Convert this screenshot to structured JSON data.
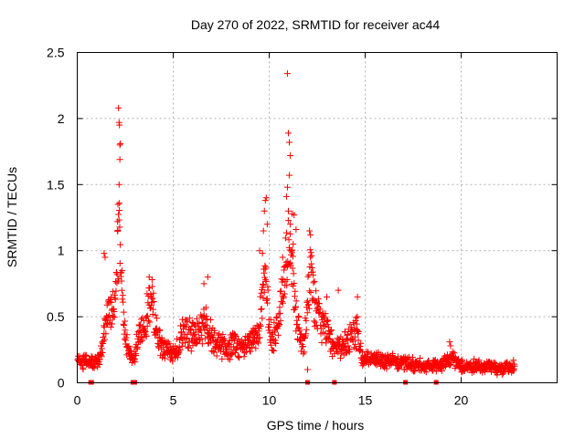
{
  "chart_data": {
    "type": "scatter",
    "title": "Day 270 of 2022, SRMTID for receiver ac44",
    "xlabel": "GPS time / hours",
    "ylabel": "SRMTID / TECUs",
    "xlim": [
      0,
      25
    ],
    "ylim": [
      0,
      2.5
    ],
    "xticks": [
      0,
      5,
      10,
      15,
      20
    ],
    "yticks": [
      0,
      0.5,
      1,
      1.5,
      2,
      2.5
    ],
    "grid": true,
    "marker": "+",
    "color": "#ff0000",
    "profile": [
      [
        0.0,
        0.17
      ],
      [
        0.5,
        0.16
      ],
      [
        0.9,
        0.15
      ],
      [
        1.2,
        0.2
      ],
      [
        1.4,
        0.35
      ],
      [
        1.6,
        0.55
      ],
      [
        1.8,
        0.5
      ],
      [
        2.0,
        0.6
      ],
      [
        2.1,
        0.95
      ],
      [
        2.2,
        1.1
      ],
      [
        2.3,
        0.8
      ],
      [
        2.5,
        0.35
      ],
      [
        2.9,
        0.15
      ],
      [
        3.2,
        0.35
      ],
      [
        3.5,
        0.45
      ],
      [
        3.8,
        0.65
      ],
      [
        4.0,
        0.5
      ],
      [
        4.3,
        0.3
      ],
      [
        4.6,
        0.25
      ],
      [
        5.0,
        0.22
      ],
      [
        5.3,
        0.3
      ],
      [
        5.6,
        0.4
      ],
      [
        6.0,
        0.35
      ],
      [
        6.3,
        0.4
      ],
      [
        6.7,
        0.45
      ],
      [
        7.0,
        0.35
      ],
      [
        7.4,
        0.3
      ],
      [
        7.8,
        0.25
      ],
      [
        8.2,
        0.3
      ],
      [
        8.6,
        0.25
      ],
      [
        9.0,
        0.3
      ],
      [
        9.3,
        0.35
      ],
      [
        9.6,
        0.55
      ],
      [
        9.8,
        0.8
      ],
      [
        10.0,
        0.45
      ],
      [
        10.2,
        0.3
      ],
      [
        10.5,
        0.5
      ],
      [
        10.8,
        0.8
      ],
      [
        11.0,
        1.1
      ],
      [
        11.2,
        0.8
      ],
      [
        11.5,
        0.4
      ],
      [
        11.8,
        0.25
      ],
      [
        12.0,
        0.6
      ],
      [
        12.2,
        0.9
      ],
      [
        12.4,
        0.55
      ],
      [
        12.7,
        0.45
      ],
      [
        13.0,
        0.4
      ],
      [
        13.3,
        0.3
      ],
      [
        13.6,
        0.25
      ],
      [
        14.0,
        0.3
      ],
      [
        14.3,
        0.35
      ],
      [
        14.6,
        0.4
      ],
      [
        14.8,
        0.2
      ],
      [
        15.2,
        0.18
      ],
      [
        16.0,
        0.17
      ],
      [
        17.0,
        0.15
      ],
      [
        18.0,
        0.13
      ],
      [
        19.0,
        0.14
      ],
      [
        19.5,
        0.18
      ],
      [
        20.0,
        0.13
      ],
      [
        21.0,
        0.12
      ],
      [
        21.5,
        0.13
      ],
      [
        22.0,
        0.1
      ],
      [
        22.5,
        0.12
      ],
      [
        22.8,
        0.13
      ]
    ],
    "peaks": [
      [
        2.15,
        2.08
      ],
      [
        2.18,
        1.97
      ],
      [
        2.2,
        1.95
      ],
      [
        2.22,
        1.8
      ],
      [
        2.25,
        1.81
      ],
      [
        2.22,
        1.69
      ],
      [
        2.18,
        1.5
      ],
      [
        2.2,
        1.36
      ],
      [
        2.12,
        1.35
      ],
      [
        2.1,
        1.22
      ],
      [
        1.4,
        0.98
      ],
      [
        1.45,
        0.95
      ],
      [
        3.75,
        0.8
      ],
      [
        3.9,
        0.78
      ],
      [
        6.8,
        0.8
      ],
      [
        6.6,
        0.75
      ],
      [
        9.5,
        1.0
      ],
      [
        9.7,
        1.15
      ],
      [
        9.75,
        1.3
      ],
      [
        9.8,
        1.38
      ],
      [
        9.85,
        1.4
      ],
      [
        9.9,
        1.2
      ],
      [
        9.65,
        0.98
      ],
      [
        10.95,
        2.34
      ],
      [
        11.0,
        1.89
      ],
      [
        11.05,
        1.82
      ],
      [
        11.1,
        1.72
      ],
      [
        11.05,
        1.57
      ],
      [
        10.95,
        1.48
      ],
      [
        10.9,
        1.41
      ],
      [
        11.0,
        1.3
      ],
      [
        11.2,
        1.28
      ],
      [
        11.3,
        1.27
      ],
      [
        11.1,
        1.2
      ],
      [
        11.4,
        1.16
      ],
      [
        11.25,
        1.05
      ],
      [
        10.7,
        0.95
      ],
      [
        10.8,
        0.88
      ],
      [
        12.1,
        1.15
      ],
      [
        12.15,
        1.12
      ],
      [
        12.2,
        0.9
      ],
      [
        12.0,
        0.1
      ],
      [
        14.6,
        0.65
      ],
      [
        19.4,
        0.31
      ],
      [
        19.45,
        0.28
      ],
      [
        16.9,
        0.18
      ],
      [
        13.0,
        0.65
      ],
      [
        13.6,
        0.7
      ]
    ],
    "gap_markers": [
      0.7,
      0.75,
      2.9,
      3.0,
      12.0,
      13.4,
      17.1,
      18.7
    ]
  }
}
